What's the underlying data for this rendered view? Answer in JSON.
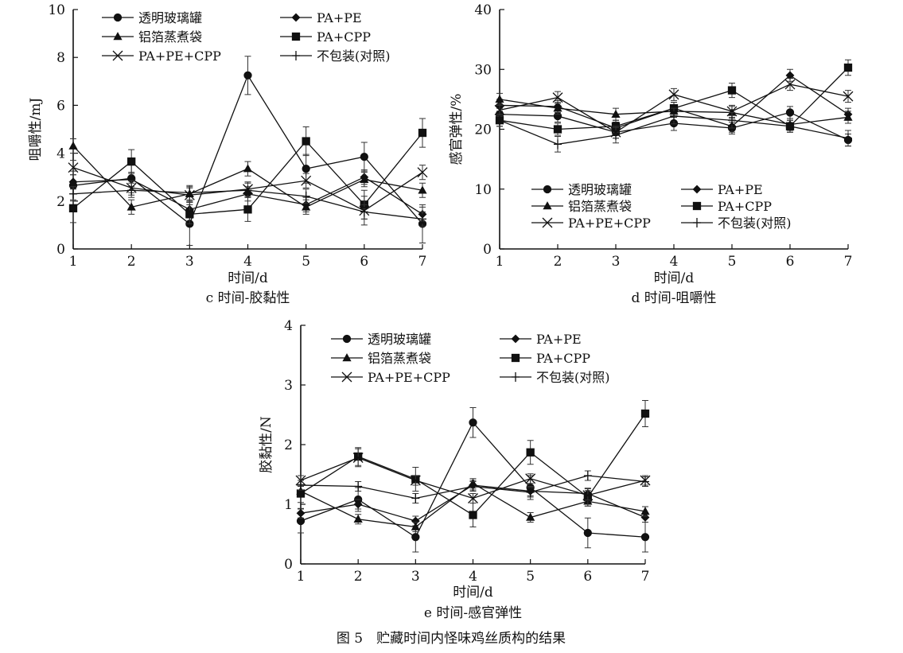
{
  "figure_caption": "图 5　贮藏时间内怪味鸡丝质构的结果",
  "chart_data": [
    {
      "type": "line",
      "panel_label": "c 时间-胶黏性",
      "xlabel": "时间/d",
      "ylabel": "咀嚼性/mJ",
      "x": [
        1,
        2,
        3,
        4,
        5,
        6,
        7
      ],
      "xlim": [
        1,
        7
      ],
      "ylim": [
        0,
        10
      ],
      "yticks": [
        0,
        2,
        4,
        6,
        8,
        10
      ],
      "grid": false,
      "legend_position": "top",
      "series": [
        {
          "name": "透明玻璃罐",
          "marker": "circle",
          "values": [
            2.65,
            2.95,
            1.05,
            7.25,
            3.35,
            3.85,
            1.05
          ],
          "errors": [
            0.6,
            0.6,
            0.9,
            0.8,
            0.6,
            0.6,
            0.8
          ]
        },
        {
          "name": "PA+PE",
          "marker": "diamond",
          "values": [
            2.8,
            2.9,
            1.65,
            2.3,
            1.85,
            3.0,
            1.45
          ],
          "errors": [
            0.3,
            0.3,
            0.3,
            0.3,
            0.3,
            0.3,
            0.3
          ]
        },
        {
          "name": "铝箔蒸煮袋",
          "marker": "triangle",
          "values": [
            4.3,
            1.75,
            2.3,
            3.35,
            1.75,
            2.9,
            2.45
          ],
          "errors": [
            0.3,
            0.3,
            0.3,
            0.3,
            0.3,
            0.3,
            0.3
          ]
        },
        {
          "name": "PA+CPP",
          "marker": "square",
          "values": [
            1.7,
            3.65,
            1.45,
            1.65,
            4.5,
            1.85,
            4.85
          ],
          "errors": [
            0.6,
            0.5,
            0.4,
            0.5,
            0.6,
            0.6,
            0.6
          ]
        },
        {
          "name": "PA+PE+CPP",
          "marker": "x",
          "values": [
            3.4,
            2.55,
            2.25,
            2.5,
            2.85,
            1.6,
            3.2
          ],
          "errors": [
            0.3,
            0.3,
            0.3,
            0.3,
            0.3,
            0.6,
            0.3
          ]
        },
        {
          "name": "不包装(对照)",
          "marker": "plus",
          "values": [
            2.3,
            2.45,
            2.35,
            2.45,
            2.2,
            1.55,
            1.25
          ],
          "errors": [
            0.3,
            0.3,
            0.3,
            0.3,
            0.3,
            0.3,
            0.3
          ]
        }
      ]
    },
    {
      "type": "line",
      "panel_label": "d 时间-咀嚼性",
      "xlabel": "时间/d",
      "ylabel": "感官弹性/%",
      "x": [
        1,
        2,
        3,
        4,
        5,
        6,
        7
      ],
      "xlim": [
        1,
        7
      ],
      "ylim": [
        0,
        40
      ],
      "yticks": [
        0,
        10,
        20,
        30,
        40
      ],
      "grid": false,
      "legend_position": "bottom",
      "series": [
        {
          "name": "透明玻璃罐",
          "marker": "circle",
          "values": [
            22.5,
            22.2,
            19.5,
            21.0,
            20.2,
            22.8,
            18.2
          ],
          "errors": [
            1.0,
            1.0,
            1.0,
            1.2,
            1.0,
            1.0,
            1.0
          ]
        },
        {
          "name": "PA+PE",
          "marker": "diamond",
          "values": [
            24.0,
            23.8,
            20.2,
            23.5,
            20.5,
            29.0,
            22.5
          ],
          "errors": [
            1.0,
            1.0,
            1.0,
            1.0,
            1.0,
            1.0,
            1.0
          ]
        },
        {
          "name": "铝箔蒸煮袋",
          "marker": "triangle",
          "values": [
            25.0,
            23.5,
            22.5,
            23.0,
            22.8,
            20.8,
            22.0
          ],
          "errors": [
            1.0,
            1.0,
            1.0,
            1.0,
            1.0,
            1.0,
            1.0
          ]
        },
        {
          "name": "PA+CPP",
          "marker": "square",
          "values": [
            21.5,
            20.0,
            20.5,
            23.5,
            26.5,
            20.5,
            30.3
          ],
          "errors": [
            1.0,
            1.0,
            1.0,
            1.0,
            1.2,
            1.0,
            1.3
          ]
        },
        {
          "name": "PA+PE+CPP",
          "marker": "x",
          "values": [
            23.2,
            25.3,
            19.5,
            25.8,
            23.0,
            27.5,
            25.5
          ],
          "errors": [
            1.0,
            1.0,
            1.0,
            1.0,
            1.0,
            1.0,
            1.0
          ]
        },
        {
          "name": "不包装(对照)",
          "marker": "plus",
          "values": [
            21.5,
            17.5,
            19.0,
            22.2,
            21.5,
            20.5,
            18.5
          ],
          "errors": [
            1.0,
            1.3,
            1.3,
            1.3,
            1.3,
            1.0,
            1.3
          ]
        }
      ]
    },
    {
      "type": "line",
      "panel_label": "e 时间-感官弹性",
      "xlabel": "时间/d",
      "ylabel": "胶黏性/N",
      "x": [
        1,
        2,
        3,
        4,
        5,
        6,
        7
      ],
      "xlim": [
        1,
        7
      ],
      "ylim": [
        0,
        4
      ],
      "yticks": [
        0,
        1,
        2,
        3,
        4
      ],
      "grid": false,
      "legend_position": "top",
      "series": [
        {
          "name": "透明玻璃罐",
          "marker": "circle",
          "values": [
            0.72,
            1.08,
            0.45,
            2.37,
            1.28,
            0.52,
            0.45
          ],
          "errors": [
            0.2,
            0.2,
            0.25,
            0.25,
            0.2,
            0.25,
            0.25
          ]
        },
        {
          "name": "PA+PE",
          "marker": "diamond",
          "values": [
            0.85,
            1.0,
            0.72,
            1.32,
            1.22,
            1.18,
            0.78
          ],
          "errors": [
            0.08,
            0.08,
            0.08,
            0.08,
            0.08,
            0.08,
            0.08
          ]
        },
        {
          "name": "铝箔蒸煮袋",
          "marker": "triangle",
          "values": [
            1.22,
            0.75,
            0.62,
            1.35,
            0.78,
            1.05,
            0.88
          ],
          "errors": [
            0.08,
            0.08,
            0.08,
            0.08,
            0.08,
            0.08,
            0.08
          ]
        },
        {
          "name": "PA+CPP",
          "marker": "square",
          "values": [
            1.18,
            1.8,
            1.42,
            0.82,
            1.87,
            1.12,
            2.52
          ],
          "errors": [
            0.15,
            0.15,
            0.2,
            0.2,
            0.2,
            0.15,
            0.22
          ]
        },
        {
          "name": "PA+PE+CPP",
          "marker": "x",
          "values": [
            1.4,
            1.78,
            1.4,
            1.1,
            1.43,
            1.15,
            1.4
          ],
          "errors": [
            0.08,
            0.15,
            0.08,
            0.08,
            0.08,
            0.08,
            0.08
          ]
        },
        {
          "name": "不包装(对照)",
          "marker": "plus",
          "values": [
            1.32,
            1.3,
            1.1,
            1.3,
            1.2,
            1.48,
            1.38
          ],
          "errors": [
            0.08,
            0.08,
            0.08,
            0.08,
            0.08,
            0.08,
            0.08
          ]
        }
      ]
    }
  ]
}
